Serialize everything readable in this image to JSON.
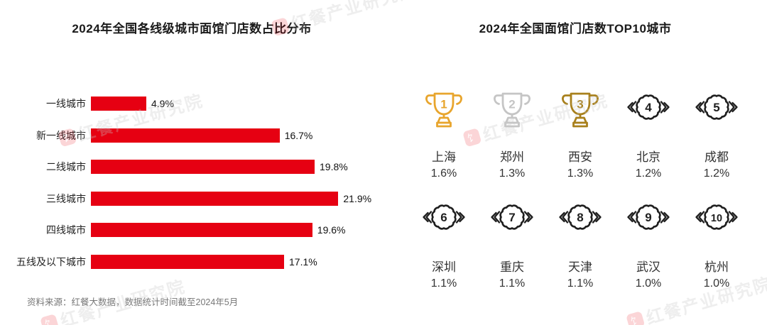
{
  "source_note": "资料来源：红餐大数据，数据统计时间截至2024年5月",
  "watermark": {
    "logo_char": "饣",
    "text": "红餐产业研究院"
  },
  "colors": {
    "bar_red": "#e60012",
    "gold": "#E8A52D",
    "silver": "#C5C5C5",
    "bronze": "#A8801C",
    "badge_black": "#1f1f1f"
  },
  "chart_data": [
    {
      "type": "bar",
      "orientation": "horizontal",
      "title": "2024年全国各线级城市面馆门店数占比分布",
      "categories": [
        "一线城市",
        "新一线城市",
        "二线城市",
        "三线城市",
        "四线城市",
        "五线及以下城市"
      ],
      "values": [
        4.9,
        16.7,
        19.8,
        21.9,
        19.6,
        17.1
      ],
      "unit": "%",
      "xlim": [
        0,
        22
      ],
      "bar_color": "#e60012",
      "grid": false,
      "value_labels": true
    },
    {
      "type": "table",
      "title": "2024年全国面馆门店数TOP10城市",
      "columns": [
        "rank",
        "city",
        "share"
      ],
      "rows": [
        {
          "rank": 1,
          "city": "上海",
          "share": "1.6%",
          "icon": "trophy-gold"
        },
        {
          "rank": 2,
          "city": "郑州",
          "share": "1.3%",
          "icon": "trophy-silver"
        },
        {
          "rank": 3,
          "city": "西安",
          "share": "1.3%",
          "icon": "trophy-bronze"
        },
        {
          "rank": 4,
          "city": "北京",
          "share": "1.2%",
          "icon": "badge"
        },
        {
          "rank": 5,
          "city": "成都",
          "share": "1.2%",
          "icon": "badge"
        },
        {
          "rank": 6,
          "city": "深圳",
          "share": "1.1%",
          "icon": "badge"
        },
        {
          "rank": 7,
          "city": "重庆",
          "share": "1.1%",
          "icon": "badge"
        },
        {
          "rank": 8,
          "city": "天津",
          "share": "1.1%",
          "icon": "badge"
        },
        {
          "rank": 9,
          "city": "武汉",
          "share": "1.0%",
          "icon": "badge"
        },
        {
          "rank": 10,
          "city": "杭州",
          "share": "1.0%",
          "icon": "badge"
        }
      ]
    }
  ]
}
